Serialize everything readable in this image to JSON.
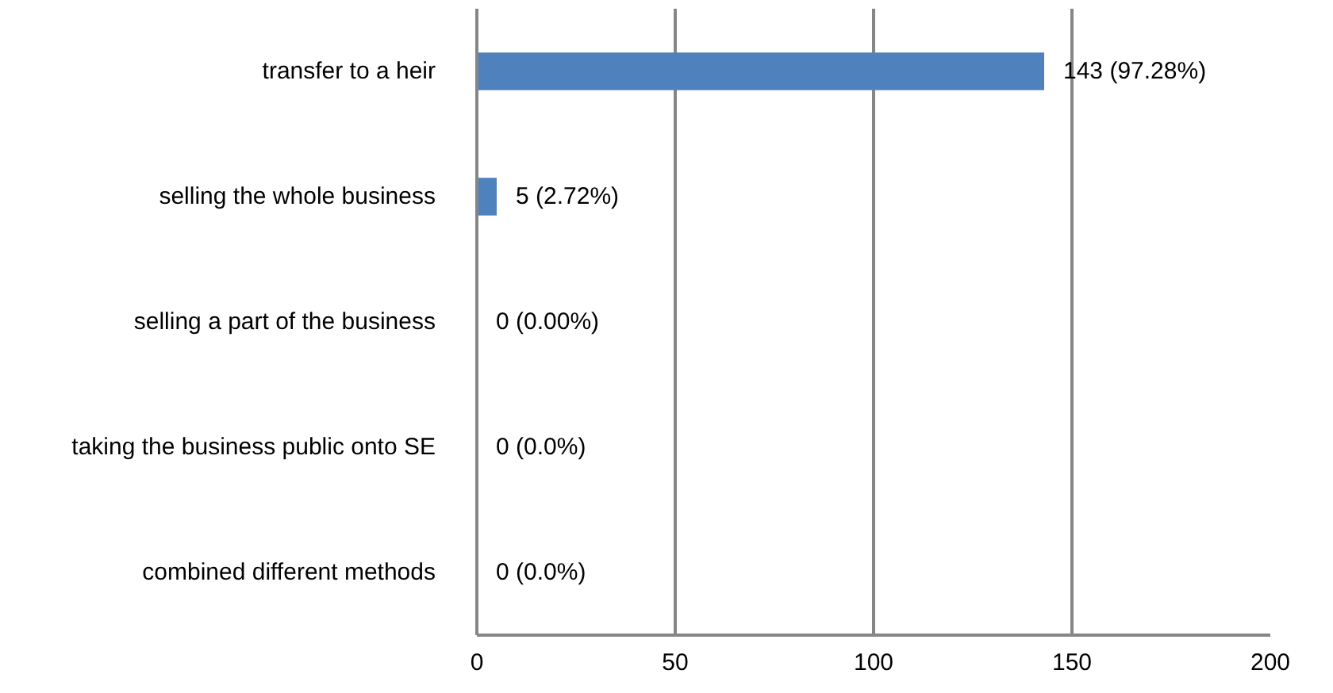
{
  "chart_data": {
    "type": "bar",
    "orientation": "horizontal",
    "categories": [
      "transfer to a heir",
      "selling the whole business",
      "selling a part of the business",
      "taking the business public onto SE",
      "combined different methods"
    ],
    "values": [
      143,
      5,
      0,
      0,
      0
    ],
    "value_labels": [
      "143 (97.28%)",
      "5 (2.72%)",
      "0 (0.00%)",
      "0 (0.0%)",
      "0 (0.0%)"
    ],
    "color": "#4f81bd",
    "xlim": [
      0,
      200
    ],
    "xticks": [
      0,
      50,
      100,
      150,
      200
    ],
    "grid": "x"
  }
}
